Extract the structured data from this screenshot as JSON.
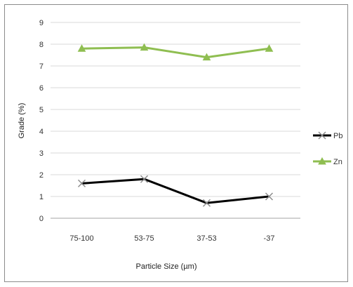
{
  "chart_data": {
    "type": "line",
    "categories": [
      "75-100",
      "53-75",
      "37-53",
      "-37"
    ],
    "series": [
      {
        "name": "Pb",
        "values": [
          1.6,
          1.8,
          0.7,
          1.0
        ],
        "color": "#000000",
        "marker": "x"
      },
      {
        "name": "Zn",
        "values": [
          7.8,
          7.85,
          7.4,
          7.8
        ],
        "color": "#8fbe51",
        "marker": "triangle"
      }
    ],
    "title": "",
    "xlabel": "Particle Size (µm)",
    "ylabel": "Grade (%)",
    "ylim": [
      0,
      9
    ],
    "yticks": [
      "0",
      "1",
      "2",
      "3",
      "4",
      "5",
      "6",
      "7",
      "8",
      "9"
    ],
    "grid": true,
    "legend_position": "right"
  }
}
